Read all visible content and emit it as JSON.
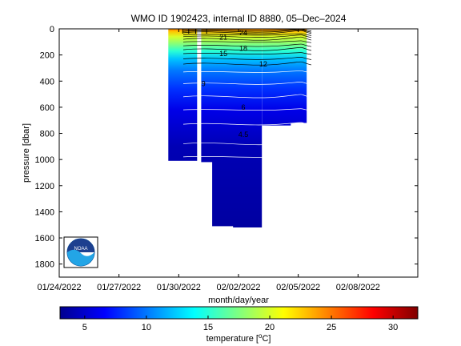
{
  "chart_data": {
    "type": "heatmap",
    "title": "WMO ID 1902423, internal ID 8880, 05–Dec–2024",
    "xlabel": "month/day/year",
    "ylabel": "pressure [dbar]",
    "colorbar_label": "temperature [°C]",
    "xlim": [
      "01/24/2022",
      "02/11/2022"
    ],
    "ylim": [
      1900,
      0
    ],
    "x_ticks": [
      "01/24/2022",
      "01/27/2022",
      "01/30/2022",
      "02/02/2022",
      "02/05/2022",
      "02/08/2022"
    ],
    "y_ticks": [
      0,
      200,
      400,
      600,
      800,
      1000,
      1200,
      1400,
      1600,
      1800
    ],
    "colorbar_ticks": [
      5,
      10,
      15,
      20,
      25,
      30
    ],
    "colorbar_range": [
      3,
      32
    ],
    "colormap": "jet",
    "profiles": [
      {
        "date": "01/30/2022",
        "max_pressure": 140
      },
      {
        "date": "01/30/2022",
        "max_pressure": 1010
      },
      {
        "date": "01/31/2022",
        "max_pressure": 1020
      },
      {
        "date": "02/01/2022",
        "max_pressure": 1510
      },
      {
        "date": "02/02/2022",
        "max_pressure": 1520
      },
      {
        "date": "02/03/2022",
        "max_pressure": 740
      },
      {
        "date": "02/04/2022",
        "max_pressure": 720
      }
    ],
    "contour_labels": [
      {
        "text": "24",
        "date": "02/02/2022",
        "pressure": 30
      },
      {
        "text": "21",
        "date": "02/01/2022",
        "pressure": 65
      },
      {
        "text": "18",
        "date": "02/02/2022",
        "pressure": 150
      },
      {
        "text": "15",
        "date": "02/01/2022",
        "pressure": 190
      },
      {
        "text": "12",
        "date": "02/03/2022",
        "pressure": 270
      },
      {
        "text": "9",
        "date": "01/31/2022",
        "pressure": 420
      },
      {
        "text": "6",
        "date": "02/02/2022",
        "pressure": 600
      },
      {
        "text": "4.5",
        "date": "02/02/2022",
        "pressure": 810
      }
    ]
  }
}
